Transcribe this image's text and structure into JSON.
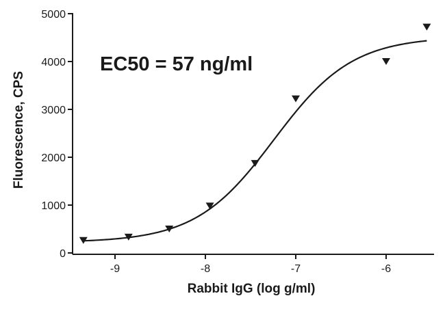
{
  "chart_data": {
    "type": "scatter",
    "title": "",
    "xlabel": "Rabbit IgG (log g/ml)",
    "ylabel": "Fluorescence, CPS",
    "annotation": "EC50 = 57 ng/ml",
    "xlim": [
      -9.5,
      -5.5
    ],
    "ylim": [
      0,
      5000
    ],
    "x_ticks": [
      -9,
      -8,
      -7,
      -6
    ],
    "x_tick_labels": [
      "-9",
      "-8",
      "-7",
      "-6"
    ],
    "y_ticks": [
      0,
      1000,
      2000,
      3000,
      4000,
      5000
    ],
    "y_tick_labels": [
      "0",
      "1000",
      "2000",
      "3000",
      "4000",
      "5000"
    ],
    "grid": false,
    "marker": "down-triangle",
    "marker_color": "#1a1a1a",
    "line_color": "#1a1a1a",
    "series": [
      {
        "points": [
          {
            "x": -9.35,
            "y": 260
          },
          {
            "x": -8.85,
            "y": 330
          },
          {
            "x": -8.4,
            "y": 500
          },
          {
            "x": -7.95,
            "y": 980
          },
          {
            "x": -7.45,
            "y": 1870
          },
          {
            "x": -7.0,
            "y": 3220
          },
          {
            "x": -6.0,
            "y": 4000
          },
          {
            "x": -5.55,
            "y": 4720
          }
        ],
        "fit": {
          "model": "four-parameter logistic",
          "bottom": 220,
          "top": 4520,
          "logEC50": -7.24,
          "hill_slope": 1.0
        }
      }
    ]
  }
}
